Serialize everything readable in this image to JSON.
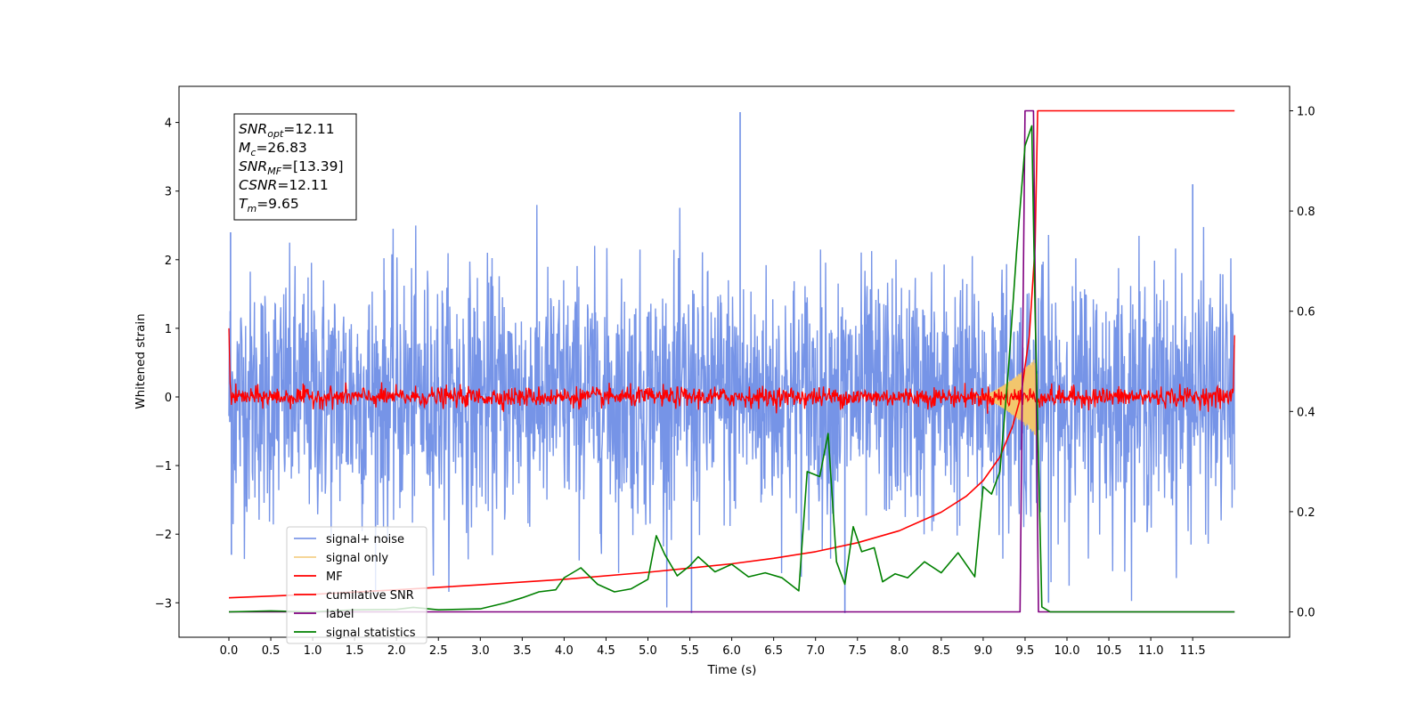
{
  "chart_data": {
    "type": "line",
    "title": "",
    "xlabel": "Time (s)",
    "ylabel": "Whitened strain",
    "xlim": [
      -0.6,
      12.6
    ],
    "ylim": [
      -3.5,
      4.5
    ],
    "y2lim": [
      -0.05,
      1.04
    ],
    "x_ticks": [
      "0.0",
      "0.5",
      "1.0",
      "1.5",
      "2.0",
      "2.5",
      "3.0",
      "3.5",
      "4.0",
      "4.5",
      "5.0",
      "5.5",
      "6.0",
      "6.5",
      "7.0",
      "7.5",
      "8.0",
      "8.5",
      "9.0",
      "9.5",
      "10.0",
      "10.5",
      "11.0",
      "11.5"
    ],
    "y_ticks": [
      "4",
      "3",
      "2",
      "1",
      "0",
      "−1",
      "−2",
      "−3"
    ],
    "y2_ticks": [
      "1.0",
      "0.8",
      "0.6",
      "0.4",
      "0.2",
      "0.0"
    ],
    "grid": false,
    "legend_position": "lower-left",
    "annotation": {
      "snr_opt": {
        "main": "SNR",
        "sub": "opt",
        "value": "=12.11"
      },
      "mc": {
        "main": "M",
        "sub": "c",
        "value": "=26.83"
      },
      "snr_mf": {
        "main": "SNR",
        "sub": "MF",
        "value": "=[13.39]"
      },
      "csnr": {
        "main": "CSNR",
        "value": "=12.11"
      },
      "tm": {
        "main": "T",
        "sub": "m",
        "value": "=9.65"
      }
    },
    "series": [
      {
        "name": "signal+ noise",
        "color": "#6f8ee6",
        "axis": "left",
        "description_stats": {
          "x_range": [
            0.0,
            12.0
          ],
          "approx_abs_peak": 4.15,
          "typical_envelope": [
            -2.0,
            2.0
          ]
        }
      },
      {
        "name": "signal only",
        "color": "#f2c66d",
        "axis": "left",
        "description_stats": {
          "chirp_start": 8.9,
          "merger": 9.65,
          "peak_amplitude": 0.6
        }
      },
      {
        "name": "MF",
        "color": "#ff0000",
        "axis": "left",
        "description_stats": {
          "baseline": 0.0,
          "noise_amplitude": 0.12
        }
      },
      {
        "name": "cumilative SNR",
        "color": "#ff0000",
        "axis": "right",
        "x": [
          0.0,
          1.0,
          2.0,
          3.0,
          4.0,
          5.0,
          6.0,
          6.5,
          7.0,
          7.5,
          8.0,
          8.5,
          8.8,
          9.0,
          9.2,
          9.35,
          9.45,
          9.55,
          9.62,
          9.65,
          12.0
        ],
        "y": [
          0.028,
          0.035,
          0.044,
          0.054,
          0.065,
          0.079,
          0.096,
          0.107,
          0.12,
          0.138,
          0.162,
          0.199,
          0.231,
          0.262,
          0.309,
          0.37,
          0.43,
          0.55,
          0.73,
          1.0,
          1.0
        ]
      },
      {
        "name": "label",
        "color": "#800080",
        "axis": "right",
        "x": [
          0.0,
          9.44,
          9.5,
          9.6,
          9.66,
          12.0
        ],
        "y": [
          0.0,
          0.0,
          1.0,
          1.0,
          0.0,
          0.0
        ]
      },
      {
        "name": "signal statistics",
        "color": "#008000",
        "axis": "right",
        "x": [
          0.0,
          0.5,
          1.0,
          1.5,
          2.0,
          2.2,
          2.5,
          3.0,
          3.3,
          3.5,
          3.7,
          3.9,
          4.0,
          4.2,
          4.4,
          4.6,
          4.8,
          5.0,
          5.1,
          5.2,
          5.35,
          5.5,
          5.6,
          5.8,
          6.0,
          6.2,
          6.4,
          6.6,
          6.8,
          6.9,
          7.05,
          7.15,
          7.25,
          7.35,
          7.45,
          7.55,
          7.7,
          7.8,
          7.95,
          8.1,
          8.3,
          8.5,
          8.7,
          8.9,
          9.0,
          9.1,
          9.2,
          9.3,
          9.4,
          9.5,
          9.58,
          9.62,
          9.7,
          9.8,
          12.0
        ],
        "y": [
          0.0,
          0.002,
          0.0,
          0.004,
          0.005,
          0.009,
          0.004,
          0.006,
          0.018,
          0.028,
          0.04,
          0.044,
          0.068,
          0.088,
          0.055,
          0.04,
          0.046,
          0.065,
          0.152,
          0.115,
          0.072,
          0.092,
          0.11,
          0.08,
          0.095,
          0.07,
          0.078,
          0.068,
          0.042,
          0.28,
          0.27,
          0.356,
          0.1,
          0.055,
          0.17,
          0.12,
          0.128,
          0.06,
          0.076,
          0.068,
          0.1,
          0.078,
          0.118,
          0.07,
          0.25,
          0.235,
          0.28,
          0.48,
          0.72,
          0.93,
          0.97,
          0.6,
          0.01,
          0.0,
          0.0
        ]
      }
    ]
  }
}
